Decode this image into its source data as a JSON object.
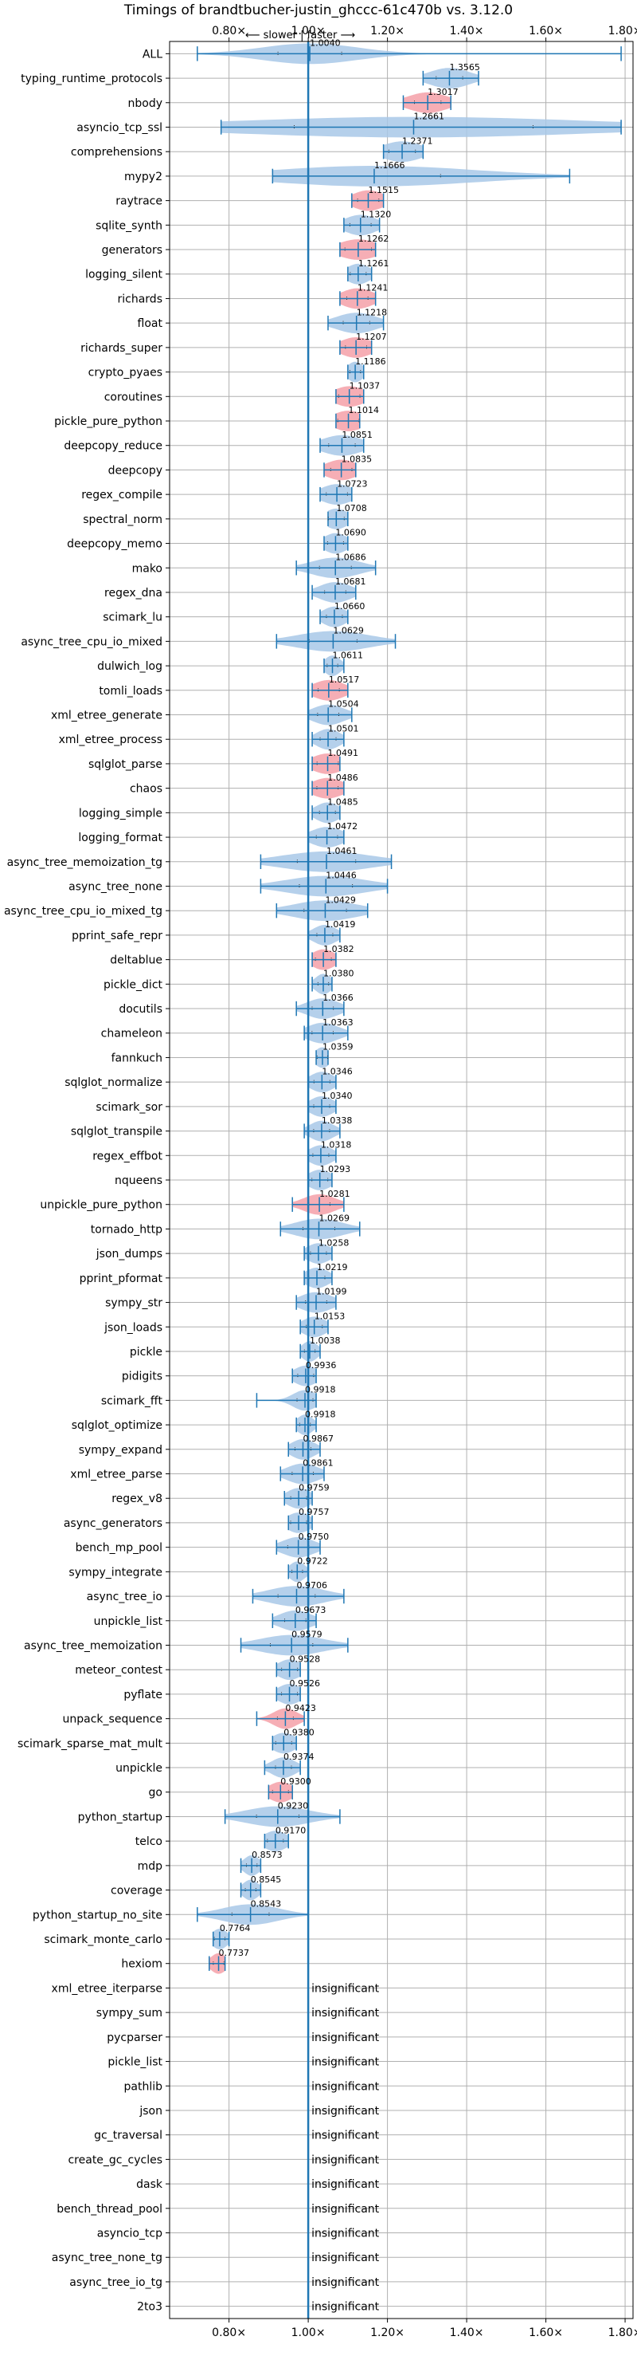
{
  "chart_data": {
    "type": "violin",
    "title": "Timings of brandtbucher-justin_ghccc-61c470b vs. 3.12.0",
    "subtitle": "⟵ slower | faster ⟶",
    "x_ticks": [
      0.8,
      1.0,
      1.2,
      1.4,
      1.6,
      1.8
    ],
    "x_tick_labels": [
      "0.80×",
      "1.00×",
      "1.20×",
      "1.40×",
      "1.60×",
      "1.80×"
    ],
    "xlim": [
      0.65,
      1.82
    ],
    "grid": true,
    "reference_line": 1.0,
    "insignificant_label": "insignificant",
    "colors": {
      "normal": "#a8c8e8",
      "slow": "#f4a0a8",
      "line": "#1f77b4",
      "grid": "#b0b0b0"
    },
    "benchmarks": [
      {
        "name": "ALL",
        "value": "1.0040",
        "mean": 1.004,
        "min": 0.72,
        "max": 1.79,
        "spread": 0.12,
        "kind": "normal"
      },
      {
        "name": "typing_runtime_protocols",
        "value": "1.3565",
        "mean": 1.3565,
        "min": 1.29,
        "max": 1.43,
        "spread": 0.05,
        "kind": "normal"
      },
      {
        "name": "nbody",
        "value": "1.3017",
        "mean": 1.3017,
        "min": 1.24,
        "max": 1.36,
        "spread": 0.05,
        "kind": "slow"
      },
      {
        "name": "asyncio_tcp_ssl",
        "value": "1.2661",
        "mean": 1.2661,
        "min": 0.78,
        "max": 1.79,
        "spread": 0.45,
        "kind": "normal"
      },
      {
        "name": "comprehensions",
        "value": "1.2371",
        "mean": 1.2371,
        "min": 1.19,
        "max": 1.29,
        "spread": 0.05,
        "kind": "normal"
      },
      {
        "name": "mypy2",
        "value": "1.1666",
        "mean": 1.1666,
        "min": 0.91,
        "max": 1.66,
        "spread": 0.25,
        "kind": "normal"
      },
      {
        "name": "raytrace",
        "value": "1.1515",
        "mean": 1.1515,
        "min": 1.11,
        "max": 1.19,
        "spread": 0.04,
        "kind": "slow"
      },
      {
        "name": "sqlite_synth",
        "value": "1.1320",
        "mean": 1.132,
        "min": 1.09,
        "max": 1.18,
        "spread": 0.04,
        "kind": "normal"
      },
      {
        "name": "generators",
        "value": "1.1262",
        "mean": 1.1262,
        "min": 1.08,
        "max": 1.17,
        "spread": 0.05,
        "kind": "slow"
      },
      {
        "name": "logging_silent",
        "value": "1.1261",
        "mean": 1.1261,
        "min": 1.1,
        "max": 1.16,
        "spread": 0.03,
        "kind": "normal"
      },
      {
        "name": "richards",
        "value": "1.1241",
        "mean": 1.1241,
        "min": 1.08,
        "max": 1.17,
        "spread": 0.04,
        "kind": "slow"
      },
      {
        "name": "float",
        "value": "1.1218",
        "mean": 1.1218,
        "min": 1.05,
        "max": 1.19,
        "spread": 0.05,
        "kind": "normal"
      },
      {
        "name": "richards_super",
        "value": "1.1207",
        "mean": 1.1207,
        "min": 1.08,
        "max": 1.16,
        "spread": 0.04,
        "kind": "slow"
      },
      {
        "name": "crypto_pyaes",
        "value": "1.1186",
        "mean": 1.1186,
        "min": 1.1,
        "max": 1.14,
        "spread": 0.02,
        "kind": "normal"
      },
      {
        "name": "coroutines",
        "value": "1.1037",
        "mean": 1.1037,
        "min": 1.07,
        "max": 1.14,
        "spread": 0.04,
        "kind": "slow"
      },
      {
        "name": "pickle_pure_python",
        "value": "1.1014",
        "mean": 1.1014,
        "min": 1.07,
        "max": 1.13,
        "spread": 0.04,
        "kind": "slow"
      },
      {
        "name": "deepcopy_reduce",
        "value": "1.0851",
        "mean": 1.0851,
        "min": 1.03,
        "max": 1.14,
        "spread": 0.05,
        "kind": "normal"
      },
      {
        "name": "deepcopy",
        "value": "1.0835",
        "mean": 1.0835,
        "min": 1.04,
        "max": 1.12,
        "spread": 0.04,
        "kind": "slow"
      },
      {
        "name": "regex_compile",
        "value": "1.0723",
        "mean": 1.0723,
        "min": 1.03,
        "max": 1.11,
        "spread": 0.04,
        "kind": "normal"
      },
      {
        "name": "spectral_norm",
        "value": "1.0708",
        "mean": 1.0708,
        "min": 1.05,
        "max": 1.1,
        "spread": 0.03,
        "kind": "normal"
      },
      {
        "name": "deepcopy_memo",
        "value": "1.0690",
        "mean": 1.069,
        "min": 1.04,
        "max": 1.1,
        "spread": 0.03,
        "kind": "normal"
      },
      {
        "name": "mako",
        "value": "1.0686",
        "mean": 1.0686,
        "min": 0.97,
        "max": 1.17,
        "spread": 0.06,
        "kind": "normal"
      },
      {
        "name": "regex_dna",
        "value": "1.0681",
        "mean": 1.0681,
        "min": 1.01,
        "max": 1.12,
        "spread": 0.04,
        "kind": "normal"
      },
      {
        "name": "scimark_lu",
        "value": "1.0660",
        "mean": 1.066,
        "min": 1.03,
        "max": 1.1,
        "spread": 0.03,
        "kind": "normal"
      },
      {
        "name": "async_tree_cpu_io_mixed",
        "value": "1.0629",
        "mean": 1.0629,
        "min": 0.92,
        "max": 1.22,
        "spread": 0.09,
        "kind": "normal"
      },
      {
        "name": "dulwich_log",
        "value": "1.0611",
        "mean": 1.0611,
        "min": 1.04,
        "max": 1.09,
        "spread": 0.02,
        "kind": "normal"
      },
      {
        "name": "tomli_loads",
        "value": "1.0517",
        "mean": 1.0517,
        "min": 1.01,
        "max": 1.1,
        "spread": 0.04,
        "kind": "slow"
      },
      {
        "name": "xml_etree_generate",
        "value": "1.0504",
        "mean": 1.0504,
        "min": 1.0,
        "max": 1.11,
        "spread": 0.04,
        "kind": "normal"
      },
      {
        "name": "xml_etree_process",
        "value": "1.0501",
        "mean": 1.0501,
        "min": 1.01,
        "max": 1.09,
        "spread": 0.03,
        "kind": "normal"
      },
      {
        "name": "sqlglot_parse",
        "value": "1.0491",
        "mean": 1.0491,
        "min": 1.01,
        "max": 1.08,
        "spread": 0.04,
        "kind": "slow"
      },
      {
        "name": "chaos",
        "value": "1.0486",
        "mean": 1.0486,
        "min": 1.01,
        "max": 1.09,
        "spread": 0.04,
        "kind": "slow"
      },
      {
        "name": "logging_simple",
        "value": "1.0485",
        "mean": 1.0485,
        "min": 1.01,
        "max": 1.08,
        "spread": 0.03,
        "kind": "normal"
      },
      {
        "name": "logging_format",
        "value": "1.0472",
        "mean": 1.0472,
        "min": 1.0,
        "max": 1.09,
        "spread": 0.04,
        "kind": "normal"
      },
      {
        "name": "async_tree_memoization_tg",
        "value": "1.0461",
        "mean": 1.0461,
        "min": 0.88,
        "max": 1.21,
        "spread": 0.11,
        "kind": "normal"
      },
      {
        "name": "async_tree_none",
        "value": "1.0446",
        "mean": 1.0446,
        "min": 0.88,
        "max": 1.2,
        "spread": 0.1,
        "kind": "normal"
      },
      {
        "name": "async_tree_cpu_io_mixed_tg",
        "value": "1.0429",
        "mean": 1.0429,
        "min": 0.92,
        "max": 1.15,
        "spread": 0.08,
        "kind": "normal"
      },
      {
        "name": "pprint_safe_repr",
        "value": "1.0419",
        "mean": 1.0419,
        "min": 1.0,
        "max": 1.08,
        "spread": 0.03,
        "kind": "normal"
      },
      {
        "name": "deltablue",
        "value": "1.0382",
        "mean": 1.0382,
        "min": 1.01,
        "max": 1.07,
        "spread": 0.03,
        "kind": "slow"
      },
      {
        "name": "pickle_dict",
        "value": "1.0380",
        "mean": 1.038,
        "min": 1.01,
        "max": 1.06,
        "spread": 0.02,
        "kind": "normal"
      },
      {
        "name": "docutils",
        "value": "1.0366",
        "mean": 1.0366,
        "min": 0.97,
        "max": 1.09,
        "spread": 0.04,
        "kind": "normal"
      },
      {
        "name": "chameleon",
        "value": "1.0363",
        "mean": 1.0363,
        "min": 0.99,
        "max": 1.1,
        "spread": 0.04,
        "kind": "normal"
      },
      {
        "name": "fannkuch",
        "value": "1.0359",
        "mean": 1.0359,
        "min": 1.02,
        "max": 1.05,
        "spread": 0.02,
        "kind": "normal"
      },
      {
        "name": "sqlglot_normalize",
        "value": "1.0346",
        "mean": 1.0346,
        "min": 1.0,
        "max": 1.07,
        "spread": 0.03,
        "kind": "normal"
      },
      {
        "name": "scimark_sor",
        "value": "1.0340",
        "mean": 1.034,
        "min": 1.0,
        "max": 1.07,
        "spread": 0.03,
        "kind": "normal"
      },
      {
        "name": "sqlglot_transpile",
        "value": "1.0338",
        "mean": 1.0338,
        "min": 0.99,
        "max": 1.08,
        "spread": 0.03,
        "kind": "normal"
      },
      {
        "name": "regex_effbot",
        "value": "1.0318",
        "mean": 1.0318,
        "min": 1.0,
        "max": 1.07,
        "spread": 0.03,
        "kind": "normal"
      },
      {
        "name": "nqueens",
        "value": "1.0293",
        "mean": 1.0293,
        "min": 1.0,
        "max": 1.06,
        "spread": 0.03,
        "kind": "normal"
      },
      {
        "name": "unpickle_pure_python",
        "value": "1.0281",
        "mean": 1.0281,
        "min": 0.96,
        "max": 1.09,
        "spread": 0.04,
        "kind": "slow"
      },
      {
        "name": "tornado_http",
        "value": "1.0269",
        "mean": 1.0269,
        "min": 0.93,
        "max": 1.13,
        "spread": 0.06,
        "kind": "normal"
      },
      {
        "name": "json_dumps",
        "value": "1.0258",
        "mean": 1.0258,
        "min": 0.99,
        "max": 1.06,
        "spread": 0.03,
        "kind": "normal"
      },
      {
        "name": "pprint_pformat",
        "value": "1.0219",
        "mean": 1.0219,
        "min": 0.99,
        "max": 1.06,
        "spread": 0.03,
        "kind": "normal"
      },
      {
        "name": "sympy_str",
        "value": "1.0199",
        "mean": 1.0199,
        "min": 0.97,
        "max": 1.07,
        "spread": 0.04,
        "kind": "normal"
      },
      {
        "name": "json_loads",
        "value": "1.0153",
        "mean": 1.0153,
        "min": 0.98,
        "max": 1.05,
        "spread": 0.03,
        "kind": "normal"
      },
      {
        "name": "pickle",
        "value": "1.0038",
        "mean": 1.0038,
        "min": 0.98,
        "max": 1.03,
        "spread": 0.02,
        "kind": "normal"
      },
      {
        "name": "pidigits",
        "value": "0.9936",
        "mean": 0.9936,
        "min": 0.96,
        "max": 1.02,
        "spread": 0.03,
        "kind": "normal"
      },
      {
        "name": "scimark_fft",
        "value": "0.9918",
        "mean": 0.9918,
        "min": 0.87,
        "max": 1.02,
        "spread": 0.03,
        "kind": "normal"
      },
      {
        "name": "sqlglot_optimize",
        "value": "0.9918",
        "mean": 0.9918,
        "min": 0.97,
        "max": 1.02,
        "spread": 0.02,
        "kind": "normal"
      },
      {
        "name": "sympy_expand",
        "value": "0.9867",
        "mean": 0.9867,
        "min": 0.95,
        "max": 1.03,
        "spread": 0.03,
        "kind": "normal"
      },
      {
        "name": "xml_etree_parse",
        "value": "0.9861",
        "mean": 0.9861,
        "min": 0.93,
        "max": 1.04,
        "spread": 0.04,
        "kind": "normal"
      },
      {
        "name": "regex_v8",
        "value": "0.9759",
        "mean": 0.9759,
        "min": 0.94,
        "max": 1.01,
        "spread": 0.03,
        "kind": "normal"
      },
      {
        "name": "async_generators",
        "value": "0.9757",
        "mean": 0.9757,
        "min": 0.95,
        "max": 1.01,
        "spread": 0.03,
        "kind": "normal"
      },
      {
        "name": "bench_mp_pool",
        "value": "0.9750",
        "mean": 0.975,
        "min": 0.92,
        "max": 1.03,
        "spread": 0.04,
        "kind": "normal"
      },
      {
        "name": "sympy_integrate",
        "value": "0.9722",
        "mean": 0.9722,
        "min": 0.95,
        "max": 1.0,
        "spread": 0.02,
        "kind": "normal"
      },
      {
        "name": "async_tree_io",
        "value": "0.9706",
        "mean": 0.9706,
        "min": 0.86,
        "max": 1.09,
        "spread": 0.07,
        "kind": "normal"
      },
      {
        "name": "unpickle_list",
        "value": "0.9673",
        "mean": 0.9673,
        "min": 0.91,
        "max": 1.02,
        "spread": 0.04,
        "kind": "normal"
      },
      {
        "name": "async_tree_memoization",
        "value": "0.9579",
        "mean": 0.9579,
        "min": 0.83,
        "max": 1.1,
        "spread": 0.08,
        "kind": "normal"
      },
      {
        "name": "meteor_contest",
        "value": "0.9528",
        "mean": 0.9528,
        "min": 0.92,
        "max": 0.98,
        "spread": 0.03,
        "kind": "normal"
      },
      {
        "name": "pyflate",
        "value": "0.9526",
        "mean": 0.9526,
        "min": 0.92,
        "max": 0.98,
        "spread": 0.03,
        "kind": "normal"
      },
      {
        "name": "unpack_sequence",
        "value": "0.9423",
        "mean": 0.9423,
        "min": 0.87,
        "max": 0.99,
        "spread": 0.03,
        "kind": "slow"
      },
      {
        "name": "scimark_sparse_mat_mult",
        "value": "0.9380",
        "mean": 0.938,
        "min": 0.91,
        "max": 0.97,
        "spread": 0.03,
        "kind": "normal"
      },
      {
        "name": "unpickle",
        "value": "0.9374",
        "mean": 0.9374,
        "min": 0.89,
        "max": 0.98,
        "spread": 0.03,
        "kind": "normal"
      },
      {
        "name": "go",
        "value": "0.9300",
        "mean": 0.93,
        "min": 0.9,
        "max": 0.96,
        "spread": 0.03,
        "kind": "slow"
      },
      {
        "name": "python_startup",
        "value": "0.9230",
        "mean": 0.923,
        "min": 0.79,
        "max": 1.08,
        "spread": 0.08,
        "kind": "normal"
      },
      {
        "name": "telco",
        "value": "0.9170",
        "mean": 0.917,
        "min": 0.89,
        "max": 0.95,
        "spread": 0.03,
        "kind": "normal"
      },
      {
        "name": "mdp",
        "value": "0.8573",
        "mean": 0.8573,
        "min": 0.83,
        "max": 0.88,
        "spread": 0.02,
        "kind": "normal"
      },
      {
        "name": "coverage",
        "value": "0.8545",
        "mean": 0.8545,
        "min": 0.83,
        "max": 0.88,
        "spread": 0.02,
        "kind": "normal"
      },
      {
        "name": "python_startup_no_site",
        "value": "0.8543",
        "mean": 0.8543,
        "min": 0.72,
        "max": 1.0,
        "spread": 0.07,
        "kind": "normal"
      },
      {
        "name": "scimark_monte_carlo",
        "value": "0.7764",
        "mean": 0.7764,
        "min": 0.76,
        "max": 0.8,
        "spread": 0.02,
        "kind": "normal"
      },
      {
        "name": "hexiom",
        "value": "0.7737",
        "mean": 0.7737,
        "min": 0.75,
        "max": 0.79,
        "spread": 0.02,
        "kind": "slow"
      },
      {
        "name": "xml_etree_iterparse",
        "kind": "insignificant"
      },
      {
        "name": "sympy_sum",
        "kind": "insignificant"
      },
      {
        "name": "pycparser",
        "kind": "insignificant"
      },
      {
        "name": "pickle_list",
        "kind": "insignificant"
      },
      {
        "name": "pathlib",
        "kind": "insignificant"
      },
      {
        "name": "json",
        "kind": "insignificant"
      },
      {
        "name": "gc_traversal",
        "kind": "insignificant"
      },
      {
        "name": "create_gc_cycles",
        "kind": "insignificant"
      },
      {
        "name": "dask",
        "kind": "insignificant"
      },
      {
        "name": "bench_thread_pool",
        "kind": "insignificant"
      },
      {
        "name": "asyncio_tcp",
        "kind": "insignificant"
      },
      {
        "name": "async_tree_none_tg",
        "kind": "insignificant"
      },
      {
        "name": "async_tree_io_tg",
        "kind": "insignificant"
      },
      {
        "name": "2to3",
        "kind": "insignificant"
      }
    ]
  }
}
